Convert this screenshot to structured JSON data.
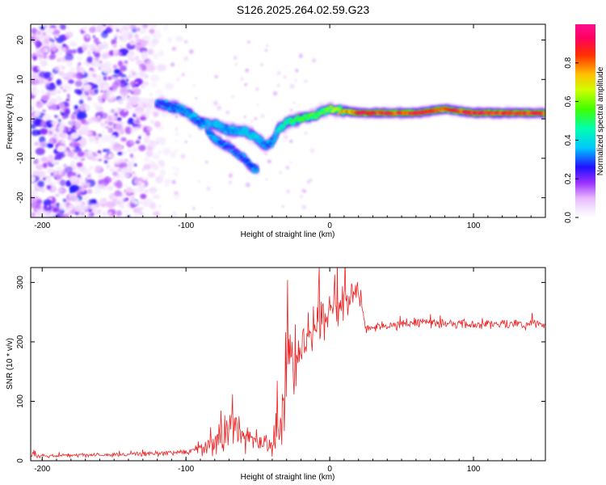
{
  "title": "S126.2025.264.02.59.G23",
  "chart_data": [
    {
      "type": "heatmap",
      "name": "spectrogram",
      "xlabel": "Height of straight line (km)",
      "ylabel": "Frequency (Hz)",
      "xlim": [
        -208,
        150
      ],
      "ylim": [
        -25,
        24
      ],
      "xticks": [
        -200,
        -100,
        0,
        100
      ],
      "yticks": [
        -20,
        -10,
        0,
        10,
        20
      ],
      "colorbar": {
        "label": "Normalized spectral amplitude",
        "range": [
          0,
          1
        ],
        "ticks": [
          0.0,
          0.2,
          0.4,
          0.6,
          0.8
        ],
        "tick_labels": [
          "0.0",
          "0.2",
          "0.4",
          "0.6",
          "0.8"
        ]
      },
      "ridge": {
        "x": [
          -120,
          -110,
          -100,
          -90,
          -80,
          -70,
          -60,
          -50,
          -45,
          -40,
          -35,
          -30,
          -20,
          -10,
          0,
          20,
          40,
          60,
          80,
          100,
          120,
          150
        ],
        "freq": [
          4,
          3,
          2,
          -1,
          -1.5,
          -3,
          -3,
          -5,
          -7,
          -6,
          -2,
          -1,
          0,
          1,
          2.5,
          1.5,
          1.5,
          1.5,
          2.5,
          1.5,
          1.5,
          1.5
        ],
        "amplitude": [
          0.25,
          0.3,
          0.35,
          0.3,
          0.4,
          0.35,
          0.4,
          0.4,
          0.3,
          0.35,
          0.45,
          0.5,
          0.55,
          0.6,
          0.65,
          0.95,
          0.95,
          0.95,
          0.9,
          0.95,
          0.95,
          0.95
        ]
      },
      "branch": {
        "x": [
          -85,
          -80,
          -75,
          -70,
          -65,
          -60,
          -55,
          -50
        ],
        "freq": [
          -3,
          -5,
          -6.5,
          -7,
          -8.5,
          -10,
          -12,
          -13
        ],
        "amplitude": [
          0.3,
          0.35,
          0.3,
          0.25,
          0.25,
          0.25,
          0.3,
          0.35
        ]
      },
      "noise_region": {
        "x_range": [
          -208,
          -118
        ],
        "freq_range": [
          -25,
          24
        ]
      }
    },
    {
      "type": "line",
      "name": "snr",
      "xlabel": "Height of straight line (km)",
      "ylabel": "SNR (10 * v/v)",
      "xlim": [
        -208,
        150
      ],
      "ylim": [
        0,
        325
      ],
      "xticks": [
        -200,
        -100,
        0,
        100
      ],
      "yticks": [
        0,
        100,
        200,
        300
      ],
      "color": "#ee2222",
      "series": [
        {
          "name": "SNR",
          "x": [
            -208,
            -150,
            -100,
            -80,
            -70,
            -60,
            -50,
            -40,
            -35,
            -30,
            -25,
            -20,
            -10,
            0,
            10,
            20,
            25,
            30,
            60,
            100,
            150
          ],
          "y": [
            8,
            10,
            14,
            28,
            55,
            45,
            30,
            25,
            60,
            160,
            170,
            200,
            230,
            250,
            270,
            290,
            220,
            225,
            232,
            230,
            230
          ],
          "spread": [
            5,
            5,
            8,
            30,
            55,
            40,
            28,
            25,
            80,
            110,
            90,
            80,
            60,
            60,
            40,
            40,
            12,
            12,
            12,
            12,
            12
          ]
        }
      ]
    }
  ]
}
